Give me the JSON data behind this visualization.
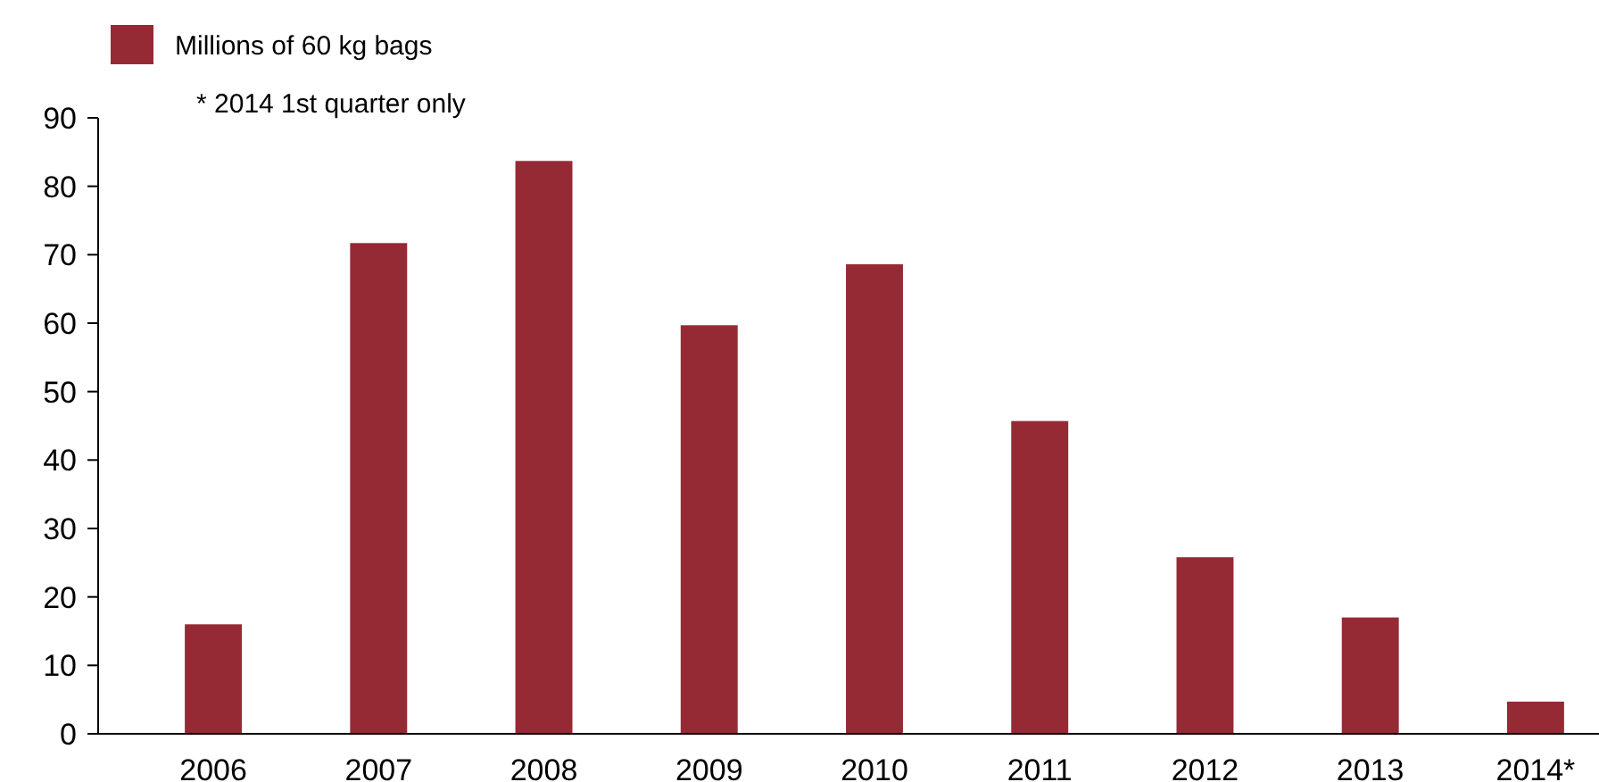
{
  "chart_data": {
    "type": "bar",
    "categories": [
      "2006",
      "2007",
      "2008",
      "2009",
      "2010",
      "2011",
      "2012",
      "2013",
      "2014*"
    ],
    "series": [
      {
        "name": "Millions of 60 kg bags",
        "color": "#952a35",
        "values": [
          16,
          71.7,
          83.7,
          59.7,
          68.6,
          45.7,
          25.8,
          17,
          4.7
        ]
      }
    ],
    "ylim": [
      0,
      90
    ],
    "yticks": [
      0,
      10,
      20,
      30,
      40,
      50,
      60,
      70,
      80,
      90
    ],
    "grid": false,
    "legend": "top left",
    "annotations": [
      "* 2014 1st quarter only"
    ]
  }
}
